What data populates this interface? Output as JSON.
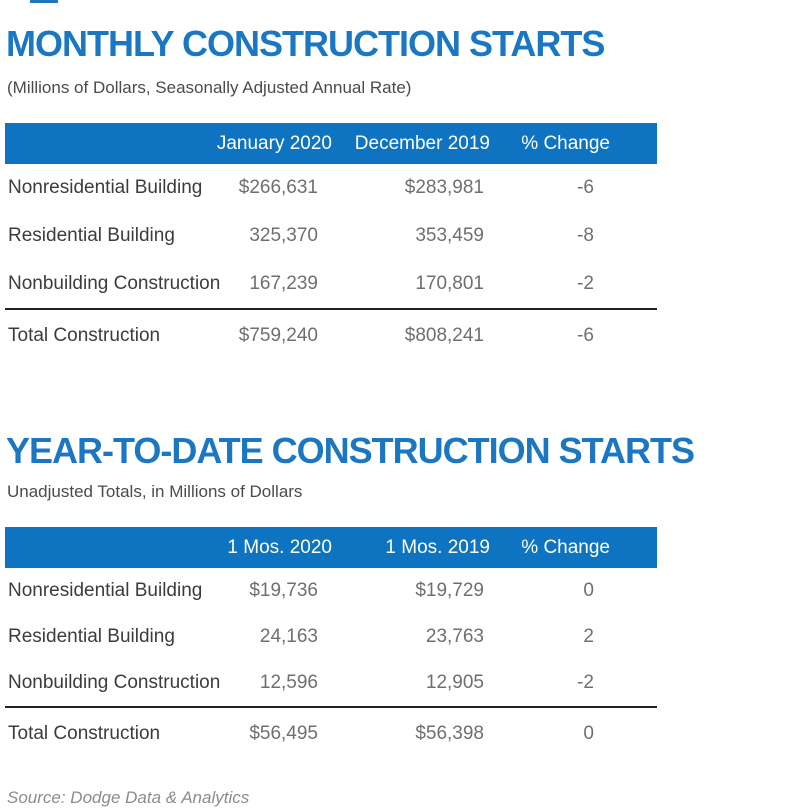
{
  "colors": {
    "title_blue": "#1c77c3",
    "header_bar_blue": "#0e74c2",
    "header_text": "#ffffff",
    "row_label_text": "#3c3c3c",
    "value_text": "#6f6f6f",
    "subtitle_text": "#4b4b4b",
    "source_text": "#8c8c8c",
    "total_divider": "#222222"
  },
  "chart_data": [
    {
      "type": "table",
      "title": "MONTHLY CONSTRUCTION STARTS",
      "subtitle": "(Millions of Dollars, Seasonally Adjusted Annual Rate)",
      "columns": [
        "",
        "January 2020",
        "December 2019",
        "% Change"
      ],
      "rows": [
        [
          "Nonresidential Building",
          "$266,631",
          "$283,981",
          "-6"
        ],
        [
          "Residential Building",
          "325,370",
          "353,459",
          "-8"
        ],
        [
          "Nonbuilding Construction",
          "167,239",
          "170,801",
          "-2"
        ]
      ],
      "total_row": [
        "Total Construction",
        "$759,240",
        "$808,241",
        "-6"
      ],
      "values_numeric": {
        "January 2020": [
          266631,
          325370,
          167239,
          759240
        ],
        "December 2019": [
          283981,
          353459,
          170801,
          808241
        ],
        "% Change": [
          -6,
          -8,
          -2,
          -6
        ]
      }
    },
    {
      "type": "table",
      "title": "YEAR-TO-DATE CONSTRUCTION STARTS",
      "subtitle": "Unadjusted Totals, in Millions of Dollars",
      "columns": [
        "",
        "1 Mos. 2020",
        "1 Mos. 2019",
        "% Change"
      ],
      "rows": [
        [
          "Nonresidential Building",
          "$19,736",
          "$19,729",
          "0"
        ],
        [
          "Residential Building",
          "24,163",
          "23,763",
          "2"
        ],
        [
          "Nonbuilding Construction",
          "12,596",
          "12,905",
          "-2"
        ]
      ],
      "total_row": [
        "Total Construction",
        "$56,495",
        "$56,398",
        "0"
      ],
      "values_numeric": {
        "1 Mos. 2020": [
          19736,
          24163,
          12596,
          56495
        ],
        "1 Mos. 2019": [
          19729,
          23763,
          12905,
          56398
        ],
        "% Change": [
          0,
          2,
          -2,
          0
        ]
      }
    }
  ],
  "footer": {
    "source": "Source: Dodge Data & Analytics"
  }
}
